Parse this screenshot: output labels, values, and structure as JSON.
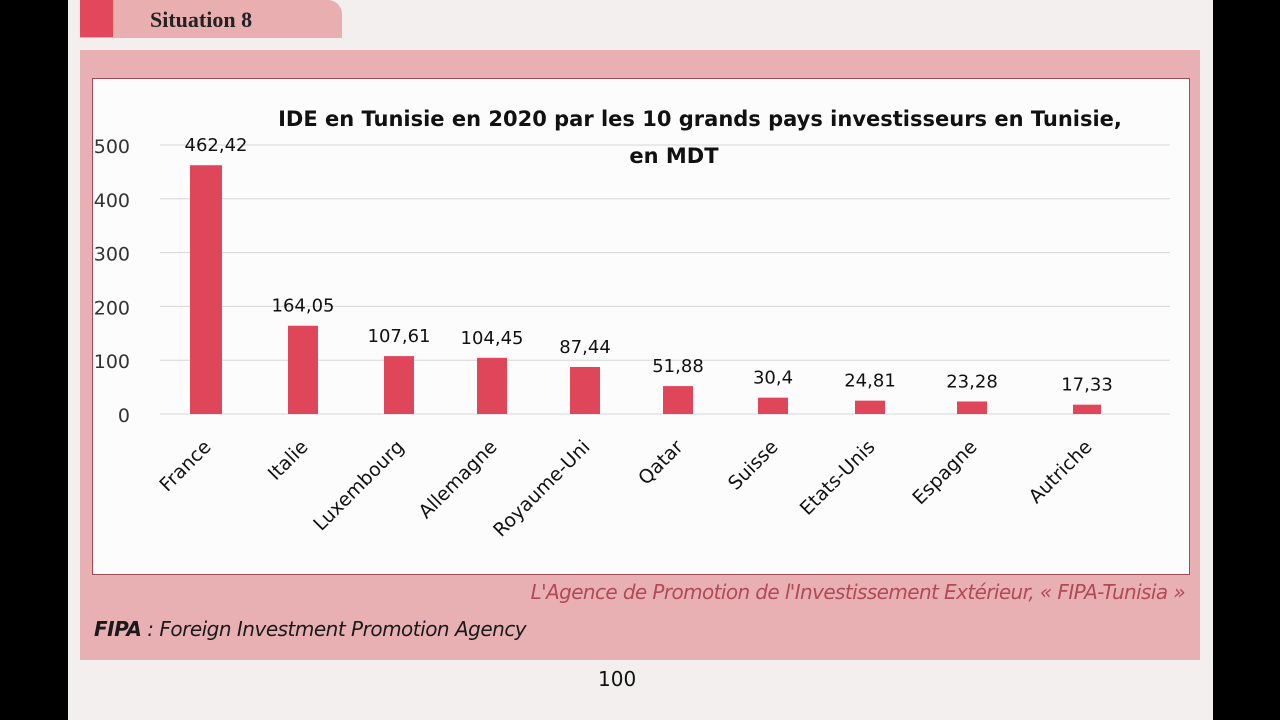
{
  "header": {
    "situation_label": "Situation 8"
  },
  "chart_data": {
    "type": "bar",
    "title": "IDE en Tunisie en 2020 par les 10 grands pays investisseurs en Tunisie,",
    "subtitle": "en MDT",
    "categories": [
      "France",
      "Italie",
      "Luxembourg",
      "Allemagne",
      "Royaume-Uni",
      "Qatar",
      "Suisse",
      "Etats-Unis",
      "Espagne",
      "Autriche"
    ],
    "values": [
      462.42,
      164.05,
      107.61,
      104.45,
      87.44,
      51.88,
      30.4,
      24.81,
      23.28,
      17.33
    ],
    "data_labels": [
      "462,42",
      "164,05",
      "107,61",
      "104,45",
      "87,44",
      "51,88",
      "30,4",
      "24,81",
      "23,28",
      "17,33"
    ],
    "yticks": [
      0,
      100,
      200,
      300,
      400,
      500
    ],
    "ylim": [
      0,
      500
    ],
    "grid": true,
    "bar_color": "#e0465a"
  },
  "source": "L'Agence de Promotion de l'Investissement Extérieur, « FIPA-Tunisia »",
  "footnote": {
    "abbr": "FIPA",
    "text": " : Foreign Investment Promotion Agency"
  },
  "page_number": "100"
}
